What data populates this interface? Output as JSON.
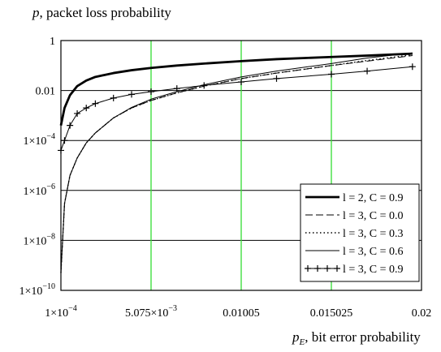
{
  "chart_data": {
    "type": "line",
    "ylabel": {
      "var": "p",
      "text": ", packet loss probability"
    },
    "xlabel": {
      "var": "p",
      "sub": "E",
      "text": ", bit error probability"
    },
    "x_scale": "linear",
    "y_scale": "log",
    "xlim": [
      0.0001,
      0.02
    ],
    "ylim": [
      1e-10,
      1
    ],
    "x_ticks": [
      {
        "value": 0.0001,
        "base": "1×10",
        "exp": "−4"
      },
      {
        "value": 0.005075,
        "base": "5.075×10",
        "exp": "−3"
      },
      {
        "value": 0.01005,
        "base": "0.01005",
        "exp": ""
      },
      {
        "value": 0.015025,
        "base": "0.015025",
        "exp": ""
      },
      {
        "value": 0.02,
        "base": "0.02",
        "exp": ""
      }
    ],
    "y_ticks": [
      {
        "value": 1,
        "base": "1",
        "exp": ""
      },
      {
        "value": 0.01,
        "base": "0.01",
        "exp": ""
      },
      {
        "value": 0.0001,
        "base": "1×10",
        "exp": "−4"
      },
      {
        "value": 1e-06,
        "base": "1×10",
        "exp": "−6"
      },
      {
        "value": 1e-08,
        "base": "1×10",
        "exp": "−8"
      },
      {
        "value": 1e-10,
        "base": "1×10",
        "exp": "−10"
      }
    ],
    "grid": {
      "vertical_color": "#33dd33",
      "horizontal_color": "#000000"
    },
    "legend_position": "bottom-right",
    "series": [
      {
        "name": "l = 2, C = 0.9",
        "style": "thick",
        "x": [
          0.0001,
          0.0003,
          0.0006,
          0.001,
          0.0015,
          0.002,
          0.003,
          0.004,
          0.005075,
          0.0065,
          0.008,
          0.01005,
          0.012,
          0.015025,
          0.017,
          0.0195
        ],
        "y": [
          0.0004,
          0.002,
          0.0065,
          0.015,
          0.025,
          0.035,
          0.05,
          0.065,
          0.08,
          0.1,
          0.12,
          0.15,
          0.18,
          0.22,
          0.25,
          0.3
        ]
      },
      {
        "name": "l = 3, C = 0.0",
        "style": "dashed",
        "x": [
          0.0001,
          0.0003,
          0.0006,
          0.001,
          0.0015,
          0.002,
          0.003,
          0.004,
          0.005075,
          0.0065,
          0.008,
          0.01005,
          0.012,
          0.015025,
          0.017,
          0.0195
        ],
        "y": [
          5e-10,
          3e-07,
          4e-06,
          2e-05,
          8e-05,
          0.0002,
          0.0008,
          0.002,
          0.004,
          0.008,
          0.015,
          0.03,
          0.05,
          0.1,
          0.15,
          0.25
        ]
      },
      {
        "name": "l = 3, C = 0.3",
        "style": "dotted",
        "x": [
          0.0001,
          0.0003,
          0.0006,
          0.001,
          0.0015,
          0.002,
          0.003,
          0.004,
          0.005075,
          0.0065,
          0.008,
          0.01005,
          0.012,
          0.015025,
          0.017,
          0.0195
        ],
        "y": [
          5e-10,
          3e-07,
          4e-06,
          2e-05,
          8e-05,
          0.0002,
          0.0008,
          0.002,
          0.004,
          0.008,
          0.015,
          0.03,
          0.05,
          0.1,
          0.16,
          0.27
        ]
      },
      {
        "name": "l = 3, C = 0.6",
        "style": "solid",
        "x": [
          0.0001,
          0.0003,
          0.0006,
          0.001,
          0.0015,
          0.002,
          0.003,
          0.004,
          0.005075,
          0.0065,
          0.008,
          0.01005,
          0.012,
          0.015025,
          0.017,
          0.0195
        ],
        "y": [
          5e-10,
          3e-07,
          4e-06,
          2e-05,
          8e-05,
          0.0002,
          0.0008,
          0.0021,
          0.0045,
          0.009,
          0.017,
          0.035,
          0.06,
          0.12,
          0.2,
          0.32
        ]
      },
      {
        "name": "l = 3, C = 0.9",
        "style": "plus",
        "x": [
          0.0001,
          0.0003,
          0.0006,
          0.001,
          0.0015,
          0.002,
          0.003,
          0.004,
          0.005075,
          0.0065,
          0.008,
          0.01005,
          0.012,
          0.015025,
          0.017,
          0.0195
        ],
        "y": [
          4e-05,
          0.0001,
          0.0004,
          0.0012,
          0.002,
          0.003,
          0.005,
          0.007,
          0.009,
          0.012,
          0.016,
          0.022,
          0.03,
          0.045,
          0.06,
          0.09
        ]
      }
    ]
  }
}
